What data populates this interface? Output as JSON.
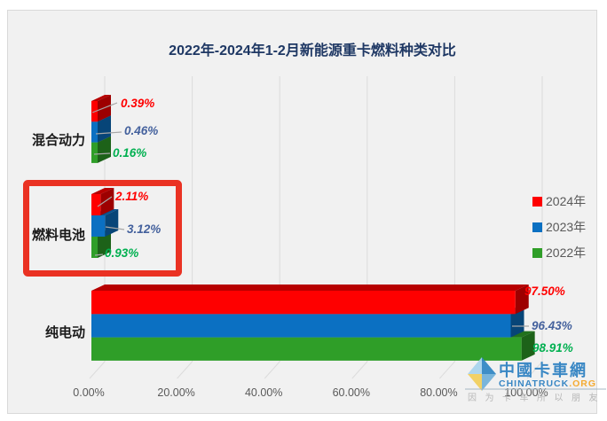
{
  "page": {
    "background": "#ffffff",
    "panel_background": "#f1f1f1",
    "panel_border": "#d9d9d9",
    "gridline_color": "#dcdcdc",
    "axis_text_color": "#595959",
    "title_color": "#1f3864",
    "category_text_color": "#1a1a1a"
  },
  "chart_data": {
    "type": "bar",
    "orientation": "horizontal",
    "style": "3d-clustered",
    "title": "2022年-2024年1-2月新能源重卡燃料种类对比",
    "categories": [
      "混合动力",
      "燃料电池",
      "纯电动"
    ],
    "series": [
      {
        "name": "2024年",
        "color": "#fe0000",
        "label_color": "#ff0000",
        "values": [
          0.39,
          2.11,
          97.5
        ],
        "labels": [
          "0.39%",
          "2.11%",
          "97.50%"
        ]
      },
      {
        "name": "2023年",
        "color": "#0b70c2",
        "label_color": "#44619d",
        "values": [
          0.46,
          3.12,
          96.43
        ],
        "labels": [
          "0.46%",
          "3.12%",
          "96.43%"
        ]
      },
      {
        "name": "2022年",
        "color": "#2f9e28",
        "label_color": "#00b050",
        "values": [
          0.16,
          0.93,
          98.91
        ],
        "labels": [
          "0.16%",
          "0.93%",
          "98.91%"
        ]
      }
    ],
    "x_axis": {
      "min": 0,
      "max": 100,
      "ticks": [
        "0.00%",
        "20.00%",
        "40.00%",
        "60.00%",
        "80.00%",
        "100.00%"
      ]
    },
    "legend": {
      "position": "right",
      "entries": [
        "2024年",
        "2023年",
        "2022年"
      ]
    },
    "grid": true
  },
  "annotation": {
    "type": "highlight-box",
    "target": "燃料电池",
    "color": "#ea3223"
  },
  "watermark": {
    "site_name": "中國卡車網",
    "site_domain": "CHINATRUCK",
    "domain_suffix": ".ORG",
    "slogan": "因为卡车所以朋友",
    "name_color": "#2a7fc1",
    "suffix_color": "#f5a623"
  }
}
